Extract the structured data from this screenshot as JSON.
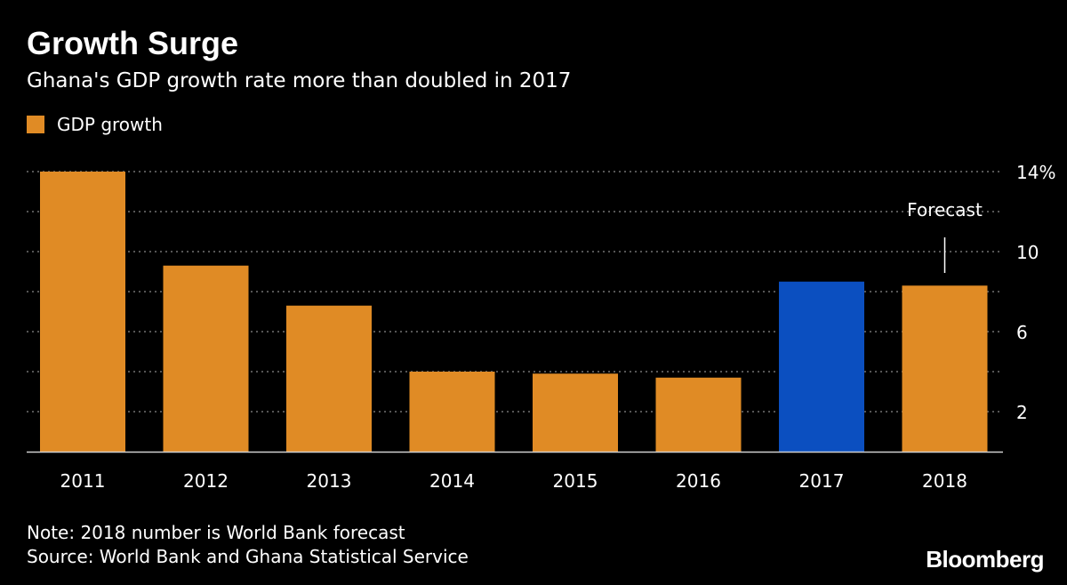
{
  "header": {
    "title": "Growth Surge",
    "subtitle": "Ghana's GDP growth rate more than doubled in 2017"
  },
  "legend": {
    "label": "GDP growth",
    "color": "#e08b25"
  },
  "colors": {
    "background": "#000000",
    "default_bar": "#e08b25",
    "highlight_bar": "#0b4fc0",
    "gridline": "#8a8a8a",
    "text": "#ffffff"
  },
  "chart_data": {
    "type": "bar",
    "categories": [
      "2011",
      "2012",
      "2013",
      "2014",
      "2015",
      "2016",
      "2017",
      "2018"
    ],
    "series": [
      {
        "name": "GDP growth",
        "values": [
          14.0,
          9.3,
          7.3,
          4.0,
          3.9,
          3.7,
          8.5,
          8.3
        ]
      }
    ],
    "highlight_category": "2017",
    "ylim": [
      0,
      14
    ],
    "y_ticks": [
      2,
      6,
      10,
      14
    ],
    "y_tick_labels": [
      "2",
      "6",
      "10",
      "14%"
    ],
    "y_gridlines": [
      2,
      4,
      6,
      8,
      10,
      12,
      14
    ],
    "y_axis_side": "right",
    "grid": true,
    "annotation": {
      "category": "2018",
      "text": "Forecast"
    }
  },
  "footer": {
    "note": "Note: 2018 number is World Bank forecast",
    "source": "Source: World Bank and Ghana Statistical Service",
    "brand": "Bloomberg"
  }
}
